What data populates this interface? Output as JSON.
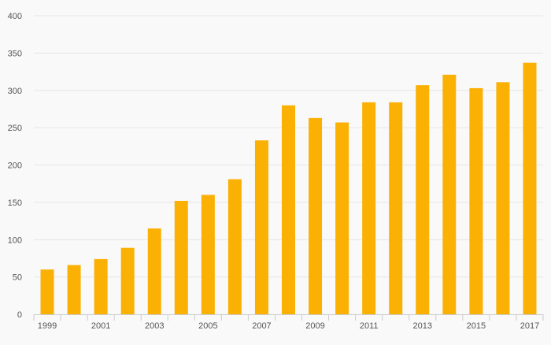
{
  "chart_data": {
    "type": "bar",
    "title": "",
    "xlabel": "",
    "ylabel": "",
    "categories": [
      "1999",
      "2000",
      "2001",
      "2002",
      "2003",
      "2004",
      "2005",
      "2006",
      "2007",
      "2008",
      "2009",
      "2010",
      "2011",
      "2012",
      "2013",
      "2014",
      "2015",
      "2016",
      "2017"
    ],
    "x_tick_labels": [
      "1999",
      "",
      "2001",
      "",
      "2003",
      "",
      "2005",
      "",
      "2007",
      "",
      "2009",
      "",
      "2011",
      "",
      "2013",
      "",
      "2015",
      "",
      "2017"
    ],
    "values": [
      60,
      66,
      74,
      89,
      115,
      152,
      160,
      181,
      233,
      280,
      263,
      257,
      284,
      284,
      307,
      321,
      303,
      311,
      337
    ],
    "ylim": [
      0,
      400
    ],
    "y_ticks": [
      0,
      50,
      100,
      150,
      200,
      250,
      300,
      350,
      400
    ],
    "grid": true,
    "legend": "none",
    "colors": {
      "bar": "#fbb104",
      "grid": "#e6e6e6",
      "axis": "#cccccc",
      "tick_text": "#555555",
      "background": "#f9f9f9"
    }
  }
}
